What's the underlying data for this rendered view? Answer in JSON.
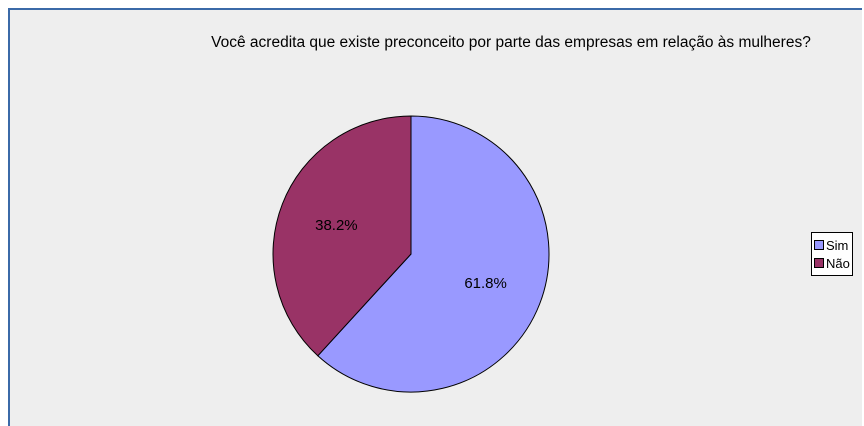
{
  "chart_data": {
    "type": "pie",
    "title": "Você acredita que existe preconceito por parte das empresas em relação às mulheres?",
    "slices": [
      {
        "label": "Sim",
        "value": 61.8,
        "value_label": "61.8%",
        "color": "#9999ff"
      },
      {
        "label": "Não",
        "value": 38.2,
        "value_label": "38.2%",
        "color": "#993366"
      }
    ],
    "legend_position": "right"
  }
}
